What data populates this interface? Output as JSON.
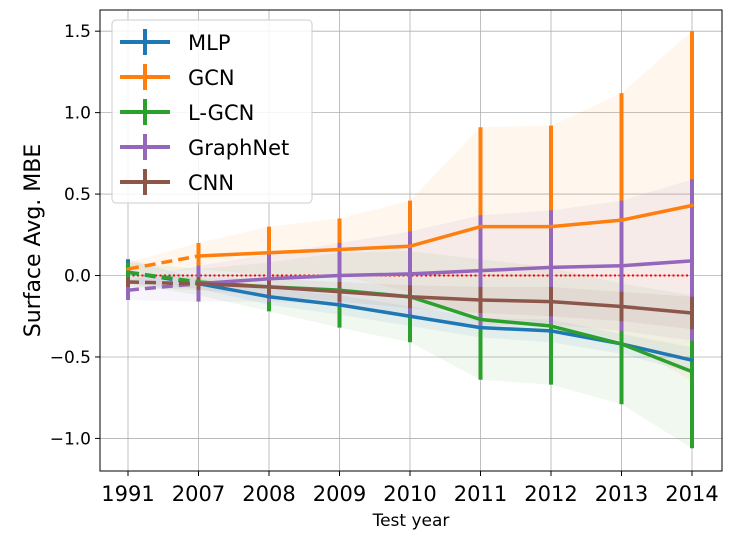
{
  "chart_data": {
    "type": "line",
    "title": "",
    "xlabel": "Test year",
    "ylabel": "Surface Avg. MBE",
    "categories": [
      "1991",
      "2007",
      "2008",
      "2009",
      "2010",
      "2011",
      "2012",
      "2013",
      "2014"
    ],
    "ylim": [
      -1.2,
      1.63
    ],
    "yticks": [
      -1.0,
      -0.5,
      0.0,
      0.5,
      1.0,
      1.5
    ],
    "ytick_labels": [
      "−1.0",
      "−0.5",
      "0.0",
      "0.5",
      "1.0",
      "1.5"
    ],
    "grid": true,
    "legend_position": "top-left",
    "first_segment_style": "dashed",
    "reference_line": {
      "y": 0.0,
      "color": "#ff0000",
      "style": "dotted"
    },
    "series": [
      {
        "name": "MLP",
        "color": "#1f77b4",
        "values": [
          0.02,
          -0.05,
          -0.13,
          -0.18,
          -0.25,
          -0.32,
          -0.34,
          -0.42,
          -0.52
        ],
        "lower": [
          -0.05,
          -0.08,
          -0.18,
          -0.24,
          -0.31,
          -0.38,
          -0.41,
          -0.48,
          -0.6
        ],
        "upper": [
          0.1,
          -0.02,
          -0.08,
          -0.12,
          -0.19,
          -0.26,
          -0.27,
          -0.36,
          -0.44
        ]
      },
      {
        "name": "GCN",
        "color": "#ff7f0e",
        "values": [
          0.04,
          0.12,
          0.14,
          0.16,
          0.18,
          0.3,
          0.3,
          0.34,
          0.43
        ],
        "lower": [
          0.0,
          0.04,
          0.0,
          0.0,
          -0.1,
          -0.3,
          -0.3,
          -0.4,
          -0.65
        ],
        "upper": [
          0.08,
          0.2,
          0.3,
          0.35,
          0.46,
          0.91,
          0.92,
          1.12,
          1.5
        ]
      },
      {
        "name": "L-GCN",
        "color": "#2ca02c",
        "values": [
          0.02,
          -0.04,
          -0.07,
          -0.09,
          -0.13,
          -0.27,
          -0.31,
          -0.42,
          -0.59
        ],
        "lower": [
          -0.05,
          -0.12,
          -0.22,
          -0.32,
          -0.41,
          -0.64,
          -0.67,
          -0.79,
          -1.06
        ],
        "upper": [
          0.08,
          0.04,
          0.08,
          0.14,
          0.15,
          0.1,
          0.05,
          -0.05,
          -0.12
        ]
      },
      {
        "name": "GraphNet",
        "color": "#9467bd",
        "values": [
          -0.09,
          -0.05,
          -0.02,
          0.0,
          0.01,
          0.03,
          0.05,
          0.06,
          0.09
        ],
        "lower": [
          -0.15,
          -0.16,
          -0.16,
          -0.18,
          -0.24,
          -0.31,
          -0.3,
          -0.34,
          -0.4
        ],
        "upper": [
          -0.03,
          0.06,
          0.13,
          0.2,
          0.27,
          0.37,
          0.4,
          0.46,
          0.59
        ]
      },
      {
        "name": "CNN",
        "color": "#8c564b",
        "values": [
          -0.04,
          -0.05,
          -0.07,
          -0.1,
          -0.13,
          -0.15,
          -0.16,
          -0.19,
          -0.23
        ],
        "lower": [
          -0.07,
          -0.09,
          -0.12,
          -0.16,
          -0.2,
          -0.23,
          -0.25,
          -0.28,
          -0.33
        ],
        "upper": [
          -0.01,
          -0.01,
          -0.02,
          -0.04,
          -0.06,
          -0.07,
          -0.07,
          -0.1,
          -0.13
        ]
      }
    ]
  }
}
